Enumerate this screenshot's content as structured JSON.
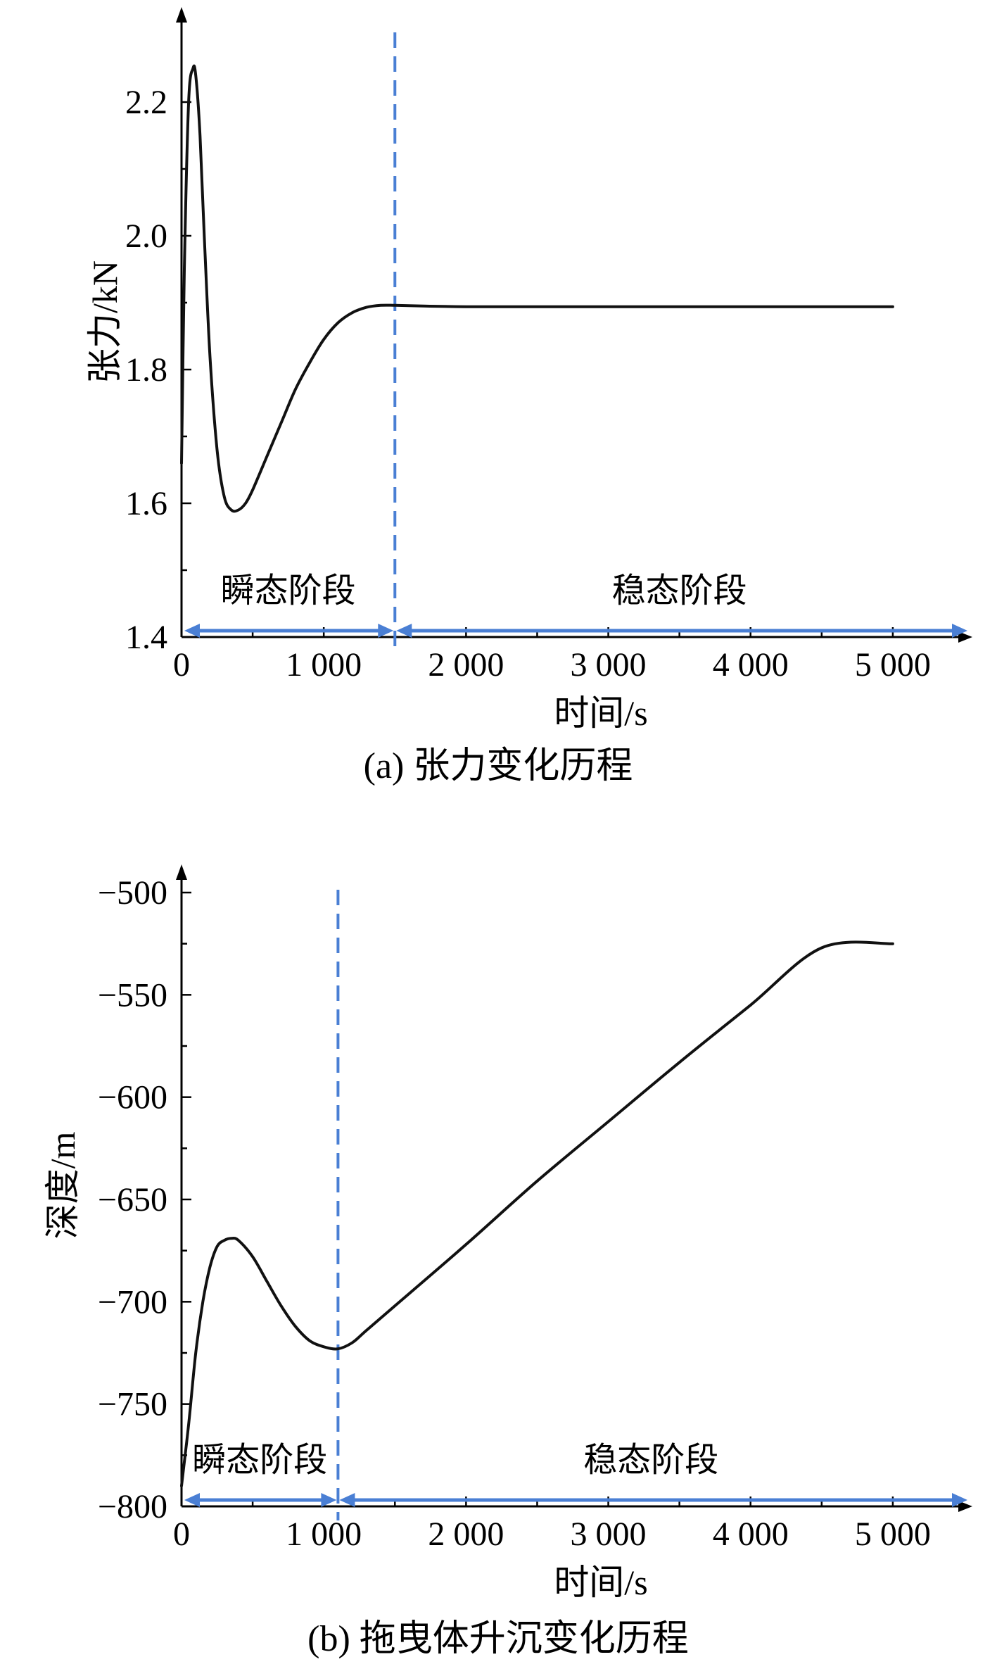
{
  "colors": {
    "divider": "#4a7fd4",
    "curve": "#111111",
    "axis": "#000000"
  },
  "chart_data": [
    {
      "type": "line",
      "caption": "(a) 张力变化历程",
      "xlabel": "时间/s",
      "ylabel": "张力/kN",
      "xlim": [
        0,
        5500
      ],
      "ylim": [
        1.4,
        2.3
      ],
      "xticks": [
        0,
        1000,
        2000,
        3000,
        4000,
        5000
      ],
      "xtick_labels": [
        "0",
        "1 000",
        "2 000",
        "3 000",
        "4 000",
        "5 000"
      ],
      "yticks": [
        1.4,
        1.6,
        1.8,
        2.0,
        2.2
      ],
      "ytick_labels": [
        "1.4",
        "1.6",
        "1.8",
        "2.0",
        "2.2"
      ],
      "phase_boundary_x": 1500,
      "phases": [
        "瞬态阶段",
        "稳态阶段"
      ],
      "series": [
        {
          "x": [
            0,
            20,
            50,
            80,
            100,
            130,
            160,
            200,
            250,
            300,
            350,
            400,
            450,
            500,
            600,
            700,
            800,
            900,
            1000,
            1100,
            1200,
            1300,
            1400,
            1500,
            1700,
            2000,
            2500,
            3000,
            3500,
            4000,
            4500,
            5000
          ],
          "y": [
            1.66,
            1.95,
            2.2,
            2.25,
            2.24,
            2.15,
            2.0,
            1.82,
            1.68,
            1.61,
            1.59,
            1.59,
            1.6,
            1.62,
            1.67,
            1.72,
            1.77,
            1.81,
            1.845,
            1.87,
            1.885,
            1.893,
            1.896,
            1.896,
            1.895,
            1.894,
            1.894,
            1.894,
            1.894,
            1.894,
            1.894,
            1.894
          ]
        }
      ]
    },
    {
      "type": "line",
      "caption": "(b) 拖曳体升沉变化历程",
      "xlabel": "时间/s",
      "ylabel": "深度/m",
      "xlim": [
        0,
        5500
      ],
      "ylim": [
        -800,
        -500
      ],
      "xticks": [
        0,
        1000,
        2000,
        3000,
        4000,
        5000
      ],
      "xtick_labels": [
        "0",
        "1 000",
        "2 000",
        "3 000",
        "4 000",
        "5 000"
      ],
      "yticks": [
        -800,
        -750,
        -700,
        -650,
        -600,
        -550,
        -500
      ],
      "ytick_labels": [
        "−800",
        "−750",
        "−700",
        "−650",
        "−600",
        "−550",
        "−500"
      ],
      "phase_boundary_x": 1100,
      "phases": [
        "瞬态阶段",
        "稳态阶段"
      ],
      "series": [
        {
          "x": [
            0,
            50,
            100,
            150,
            200,
            250,
            300,
            350,
            400,
            500,
            600,
            700,
            800,
            900,
            1000,
            1100,
            1200,
            1300,
            1500,
            2000,
            2500,
            3000,
            3500,
            4000,
            4500,
            5000
          ],
          "y": [
            -790,
            -760,
            -725,
            -700,
            -683,
            -673,
            -670,
            -669,
            -670,
            -678,
            -690,
            -702,
            -712,
            -719,
            -722,
            -723,
            -720,
            -714,
            -702,
            -672,
            -641,
            -612,
            -583,
            -555,
            -527,
            -525
          ]
        }
      ]
    }
  ]
}
